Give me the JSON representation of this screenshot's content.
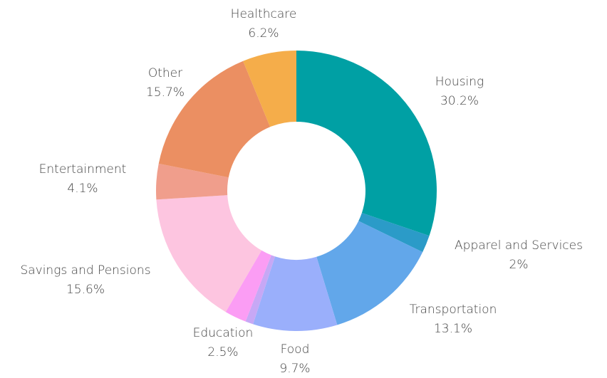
{
  "chart_data": {
    "type": "donut",
    "categories": [
      "Housing",
      "Apparel and Services",
      "Transportation",
      "Food",
      null,
      "Education",
      "Savings and Pensions",
      "Entertainment",
      "Other",
      "Healthcare"
    ],
    "values": [
      30.2,
      2,
      13.1,
      9.7,
      0.9,
      2.5,
      15.6,
      4.1,
      15.7,
      6.2
    ],
    "value_labels": [
      "30.2%",
      "2%",
      "13.1%",
      "9.7%",
      null,
      "2.5%",
      "15.6%",
      "4.1%",
      "15.7%",
      "6.2%"
    ],
    "colors": [
      "#00a0a4",
      "#2b9bc8",
      "#62a7ea",
      "#9aaffb",
      "#c7a8f5",
      "#fb9df4",
      "#fdc5e0",
      "#f09e8c",
      "#eb8f62",
      "#f5ad4a"
    ]
  }
}
